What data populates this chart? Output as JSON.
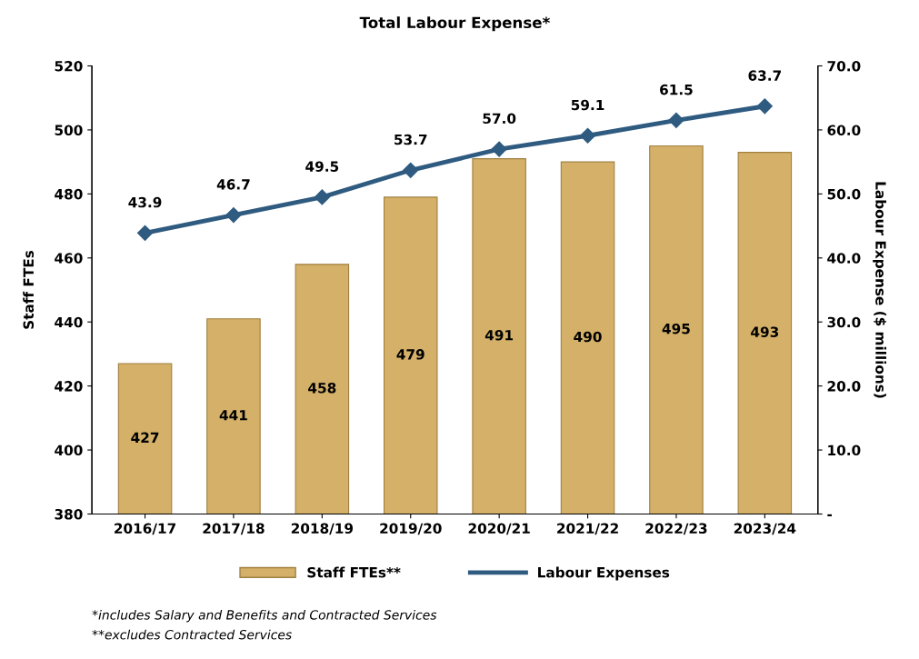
{
  "chart_data": {
    "type": "bar",
    "title": "Total Labour Expense*",
    "ylabel": "Staff FTEs",
    "y2label": "Labour Expense ($ millions)",
    "categories": [
      "2016/17",
      "2017/18",
      "2018/19",
      "2019/20",
      "2020/21",
      "2021/22",
      "2022/23",
      "2023/24"
    ],
    "series": [
      {
        "name": "Staff FTEs**",
        "color": "#d4b068",
        "values": [
          427,
          441,
          458,
          479,
          491,
          490,
          495,
          493
        ]
      },
      {
        "name": "Labour Expenses",
        "type": "line",
        "axis": "y2",
        "color": "#2f5b80",
        "marker": "diamond",
        "values": [
          43.9,
          46.7,
          49.5,
          53.7,
          57.0,
          59.1,
          61.5,
          63.7
        ],
        "value_labels": [
          "43.9",
          "46.7",
          "49.5",
          "53.7",
          "57.0",
          "59.1",
          "61.5",
          "63.7"
        ]
      }
    ],
    "ylim": [
      380,
      520
    ],
    "yticks": [
      380,
      400,
      420,
      440,
      460,
      480,
      500,
      520
    ],
    "y2lim": [
      0,
      70
    ],
    "y2ticks": [
      {
        "value": 0,
        "label": "-"
      },
      {
        "value": 10,
        "label": "10.0"
      },
      {
        "value": 20,
        "label": "20.0"
      },
      {
        "value": 30,
        "label": "30.0"
      },
      {
        "value": 40,
        "label": "40.0"
      },
      {
        "value": 50,
        "label": "50.0"
      },
      {
        "value": 60,
        "label": "60.0"
      },
      {
        "value": 70,
        "label": "70.0"
      }
    ],
    "data_labels": true,
    "grid": false,
    "legend": "bottom",
    "annotations": [
      "*includes Salary and Benefits and Contracted Services",
      "**excludes Contracted Services"
    ]
  }
}
